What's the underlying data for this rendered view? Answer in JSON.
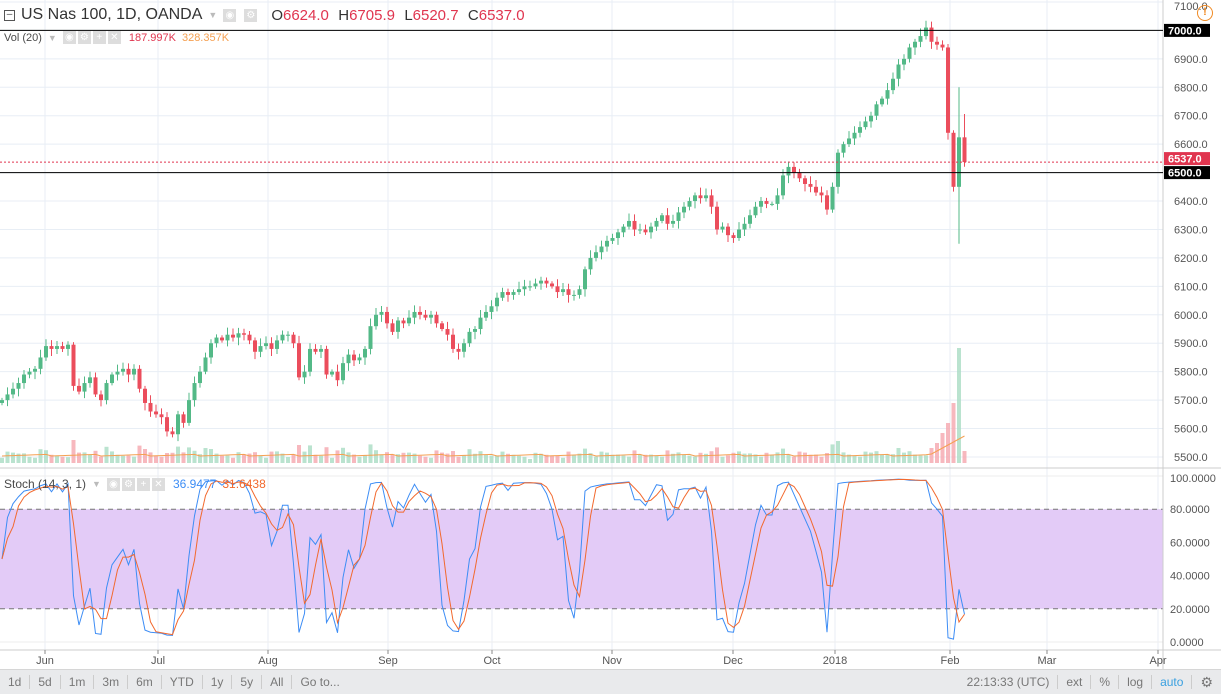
{
  "header": {
    "symbol": "US Nas 100, 1D, OANDA",
    "o_label": "O",
    "o": "6624.0",
    "h_label": "H",
    "h": "6705.9",
    "l_label": "L",
    "l": "6520.7",
    "c_label": "C",
    "c": "6537.0"
  },
  "volume_legend": {
    "name": "Vol (20)",
    "v1": "187.997K",
    "v2": "328.357K"
  },
  "stoch_legend": {
    "name": "Stoch (14, 3, 1)",
    "k": "36.9477",
    "d": "31.6438"
  },
  "toolbar": {
    "ranges": [
      "1d",
      "5d",
      "1m",
      "3m",
      "6m",
      "YTD",
      "1y",
      "5y",
      "All"
    ],
    "goto": "Go to...",
    "time": "22:13:33 (UTC)",
    "ext": "ext",
    "pct": "%",
    "log": "log",
    "auto": "auto"
  },
  "colors": {
    "up": "#53b987",
    "down": "#eb4d5c",
    "k": "#3d8df5",
    "d": "#f2692e",
    "band": "#e3cbf7"
  },
  "chart_data": {
    "type": "candlestick",
    "price_axis": [
      "7100.0",
      "7000.0",
      "6900.0",
      "6800.0",
      "6700.0",
      "6600.0",
      "6500.0",
      "6400.0",
      "6300.0",
      "6200.0",
      "6100.0",
      "6000.0",
      "5900.0",
      "5800.0",
      "5700.0",
      "5600.0",
      "5500.0"
    ],
    "price_range": [
      5500,
      7100
    ],
    "price_labels": {
      "level_7000": "7000.0",
      "last": "6537.0",
      "level_6500": "6500.0"
    },
    "horizontal_levels": [
      7000,
      6500
    ],
    "last_price": 6537,
    "stoch_axis": [
      "100.0000",
      "80.0000",
      "60.0000",
      "40.0000",
      "20.0000",
      "0.0000"
    ],
    "stoch_bands": [
      20,
      80
    ],
    "months": [
      "Jun",
      "Jul",
      "Aug",
      "Sep",
      "Oct",
      "Nov",
      "Dec",
      "2018",
      "Feb",
      "Mar",
      "Apr"
    ],
    "closes": [
      5700,
      5720,
      5740,
      5760,
      5790,
      5800,
      5810,
      5850,
      5890,
      5880,
      5890,
      5880,
      5895,
      5750,
      5730,
      5760,
      5780,
      5720,
      5700,
      5760,
      5790,
      5800,
      5810,
      5790,
      5810,
      5740,
      5690,
      5660,
      5650,
      5640,
      5590,
      5580,
      5650,
      5620,
      5700,
      5760,
      5800,
      5850,
      5900,
      5920,
      5910,
      5930,
      5920,
      5935,
      5930,
      5910,
      5870,
      5890,
      5900,
      5880,
      5910,
      5930,
      5930,
      5900,
      5780,
      5800,
      5880,
      5870,
      5880,
      5790,
      5800,
      5770,
      5830,
      5860,
      5840,
      5850,
      5880,
      5960,
      6000,
      6010,
      5970,
      5940,
      5980,
      5970,
      5990,
      6010,
      6000,
      5990,
      6000,
      5970,
      5950,
      5930,
      5880,
      5870,
      5900,
      5940,
      5950,
      5990,
      6010,
      6030,
      6060,
      6080,
      6070,
      6080,
      6090,
      6100,
      6100,
      6110,
      6120,
      6110,
      6100,
      6080,
      6090,
      6070,
      6070,
      6090,
      6160,
      6200,
      6220,
      6240,
      6260,
      6270,
      6290,
      6310,
      6330,
      6300,
      6300,
      6290,
      6310,
      6330,
      6350,
      6320,
      6330,
      6360,
      6380,
      6400,
      6420,
      6410,
      6420,
      6380,
      6300,
      6310,
      6280,
      6270,
      6300,
      6320,
      6350,
      6380,
      6400,
      6390,
      6390,
      6420,
      6490,
      6520,
      6500,
      6480,
      6460,
      6450,
      6430,
      6420,
      6370,
      6450,
      6570,
      6600,
      6620,
      6640,
      6660,
      6680,
      6700,
      6740,
      6760,
      6790,
      6830,
      6880,
      6900,
      6940,
      6960,
      6980,
      7010,
      6960,
      6950,
      6940,
      6640,
      6450,
      6624,
      6537
    ],
    "last_bar": {
      "open": 6624.0,
      "high": 6705.9,
      "low": 6520.7,
      "close": 6537.0
    }
  }
}
